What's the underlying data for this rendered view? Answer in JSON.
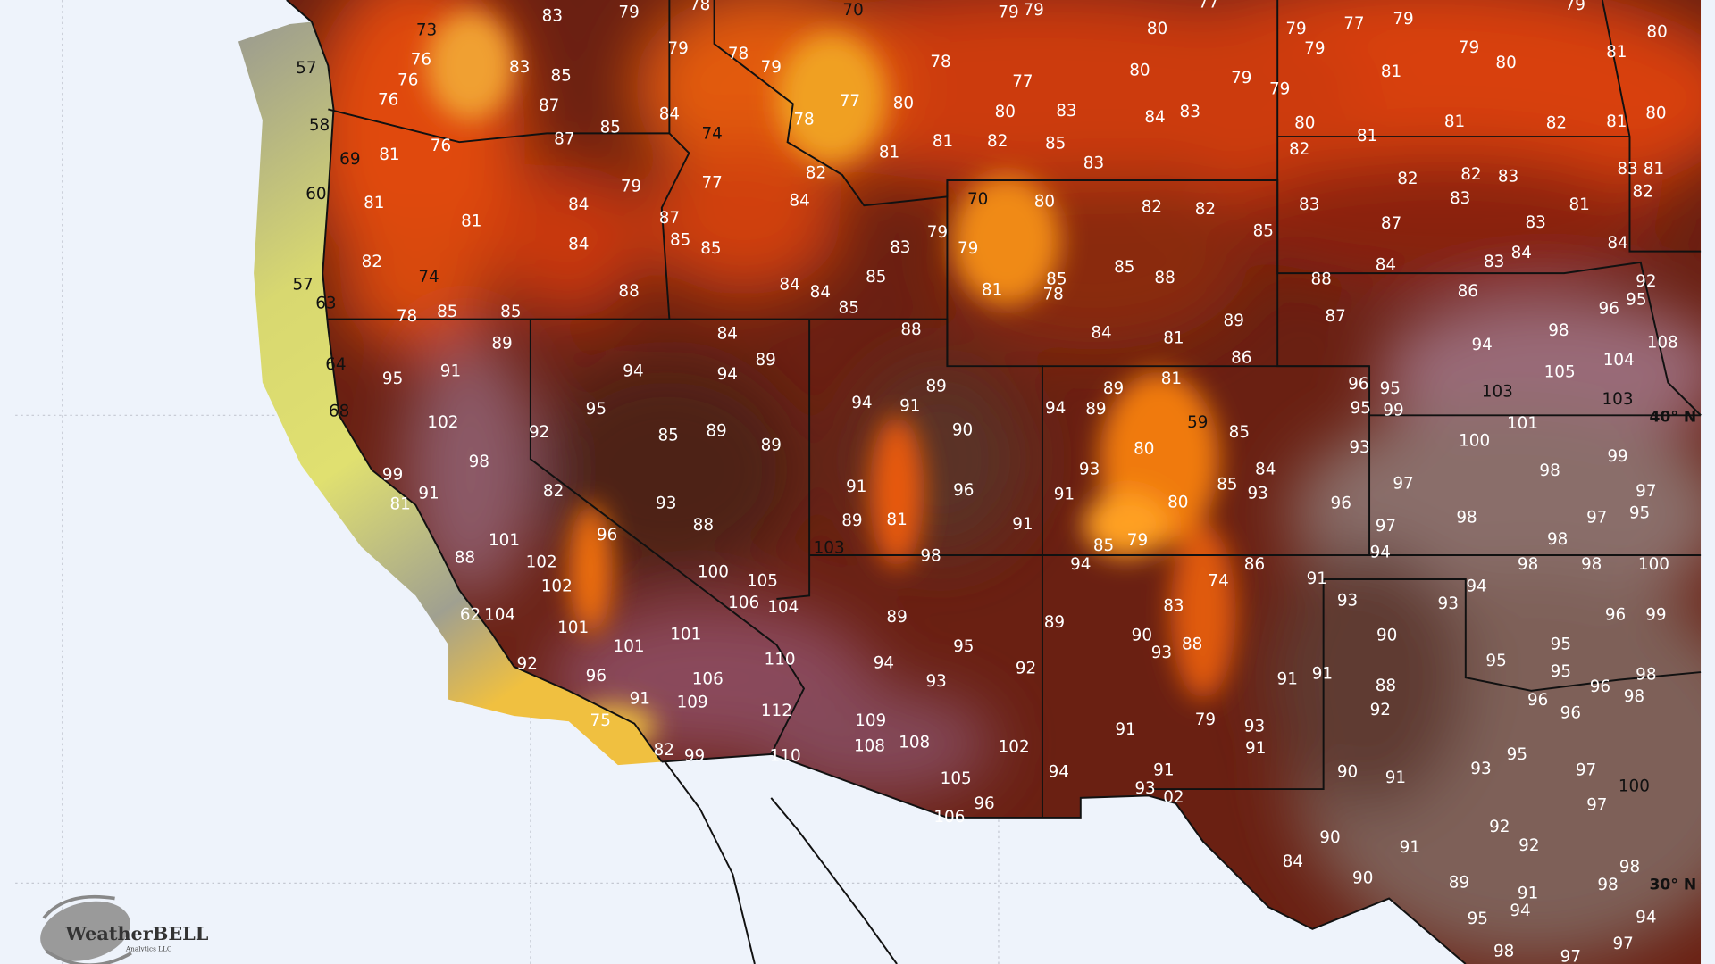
{
  "map": {
    "variable": "surface temperature (°F)",
    "colors": {
      "background": "#eef3fb",
      "cool": "#c8c85a",
      "warm": "#e8460a",
      "hot": "#5e1c14",
      "hottest": "#8c5a6a",
      "plains": "#8a6c68"
    },
    "latitude_labels": [
      "40° N",
      "30° N"
    ],
    "logo": {
      "name": "WeatherBELL",
      "sub": "Analytics LLC"
    },
    "temperature_labels": [
      "83",
      "79",
      "78",
      "70",
      "79",
      "79",
      "77",
      "79",
      "77",
      "79",
      "79",
      "80",
      "81",
      "73",
      "76",
      "76",
      "57",
      "83",
      "85",
      "79",
      "78",
      "79",
      "80",
      "78",
      "77",
      "80",
      "79",
      "79",
      "79",
      "81",
      "79",
      "80",
      "76",
      "87",
      "58",
      "85",
      "84",
      "77",
      "80",
      "80",
      "83",
      "84",
      "83",
      "80",
      "81",
      "81",
      "82",
      "81",
      "80",
      "69",
      "81",
      "76",
      "87",
      "74",
      "78",
      "81",
      "81",
      "82",
      "85",
      "83",
      "82",
      "83",
      "81",
      "82",
      "60",
      "81",
      "79",
      "77",
      "82",
      "84",
      "82",
      "82",
      "83",
      "83",
      "81",
      "81",
      "84",
      "87",
      "85",
      "85",
      "70",
      "80",
      "82",
      "82",
      "83",
      "87",
      "83",
      "85",
      "84",
      "84",
      "83",
      "84",
      "92",
      "82",
      "84",
      "74",
      "57",
      "63",
      "79",
      "79",
      "83",
      "85",
      "85",
      "88",
      "88",
      "86",
      "96",
      "95",
      "85",
      "78",
      "85",
      "88",
      "84",
      "84",
      "85",
      "85",
      "81",
      "78",
      "89",
      "87",
      "98",
      "104",
      "108",
      "89",
      "84",
      "88",
      "84",
      "81",
      "86",
      "94",
      "64",
      "95",
      "91",
      "94",
      "94",
      "89",
      "81",
      "89",
      "105",
      "103",
      "103",
      "96",
      "95",
      "68",
      "95",
      "94",
      "91",
      "89",
      "94",
      "89",
      "59",
      "95",
      "99",
      "101",
      "102",
      "92",
      "85",
      "89",
      "89",
      "90",
      "85",
      "100",
      "93",
      "99",
      "98",
      "99",
      "91",
      "81",
      "80",
      "93",
      "84",
      "93",
      "85",
      "97",
      "98",
      "97",
      "82",
      "93",
      "91",
      "96",
      "91",
      "80",
      "96",
      "98",
      "97",
      "95",
      "101",
      "96",
      "88",
      "89",
      "81",
      "91",
      "79",
      "85",
      "97",
      "98",
      "94",
      "88",
      "102",
      "100",
      "103",
      "98",
      "94",
      "86",
      "74",
      "91",
      "98",
      "98",
      "100",
      "102",
      "105",
      "106",
      "104",
      "93",
      "93",
      "94",
      "62",
      "104",
      "101",
      "101",
      "101",
      "89",
      "89",
      "83",
      "90",
      "96",
      "99",
      "110",
      "94",
      "95",
      "90",
      "93",
      "88",
      "92",
      "96",
      "106",
      "93",
      "92",
      "95",
      "95",
      "95",
      "98",
      "91",
      "91",
      "88",
      "96",
      "98",
      "96",
      "96",
      "75",
      "91",
      "109",
      "112",
      "109",
      "79",
      "93",
      "92",
      "91",
      "91",
      "108",
      "108",
      "102",
      "82",
      "99",
      "110",
      "95",
      "93",
      "97",
      "105",
      "94",
      "91",
      "90",
      "91",
      "100",
      "97",
      "106",
      "96",
      "93",
      "02",
      "92",
      "92",
      "90",
      "91",
      "84",
      "90",
      "89",
      "98",
      "98",
      "91",
      "95",
      "94",
      "94",
      "98",
      "97",
      "97"
    ]
  }
}
